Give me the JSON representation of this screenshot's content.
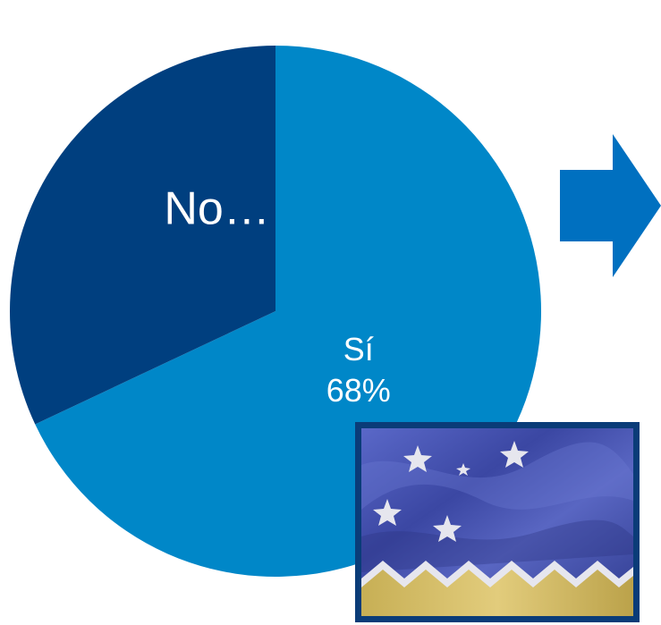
{
  "chart_data": {
    "type": "pie",
    "slices": [
      {
        "label": "Sí",
        "value": 68,
        "value_label": "68%",
        "color": "#0087C8"
      },
      {
        "label": "No…",
        "value": 32,
        "value_label": "",
        "color": "#003F7F"
      }
    ]
  },
  "decorations": {
    "arrow": {
      "icon": "arrow-right-icon",
      "color": "#0070C0"
    },
    "flag": {
      "icon": "magallanes-flag-image",
      "colors": {
        "sky": "#3E4BA8",
        "stars": "#E6E6EE",
        "band": "#D8C06A",
        "border": "#0A3C78"
      }
    }
  }
}
